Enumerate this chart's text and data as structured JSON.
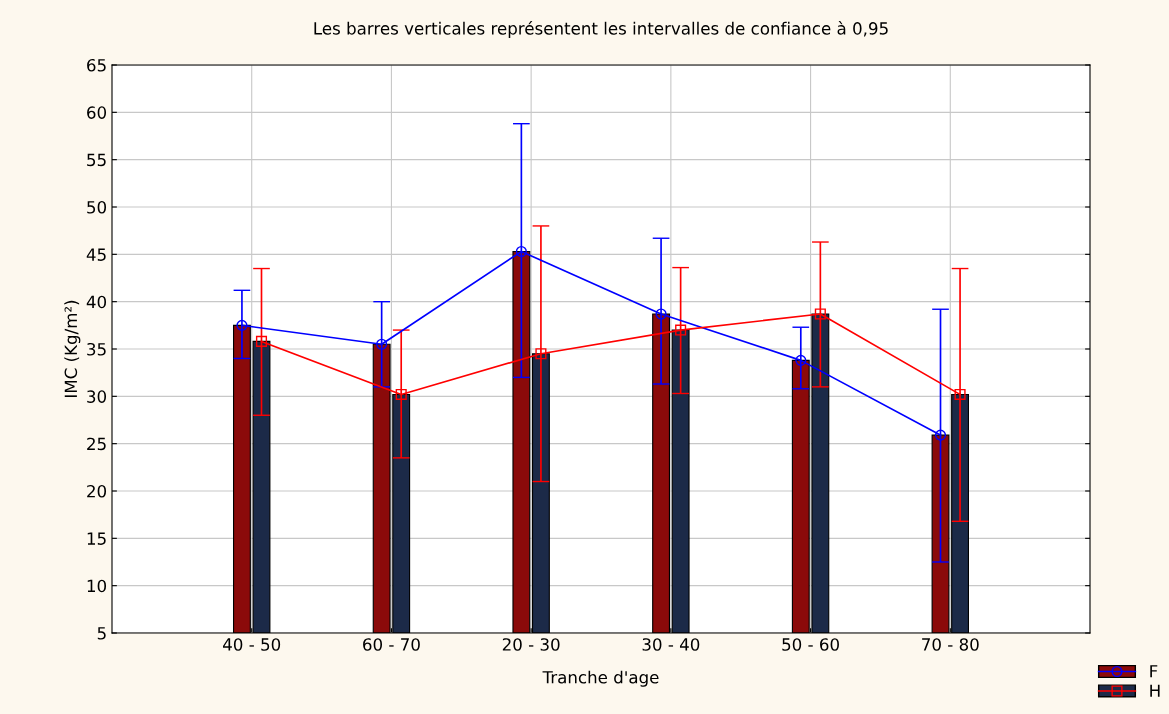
{
  "chart_data": {
    "type": "bar",
    "title": "Les barres verticales représentent les intervalles de confiance à 0,95",
    "xlabel": "Tranche d'age",
    "ylabel": "IMC (Kg/m²)",
    "categories": [
      "40 - 50",
      "60 - 70",
      "20 - 30",
      "30 - 40",
      "50 - 60",
      "70 - 80"
    ],
    "series": [
      {
        "name": "F",
        "color": "#8b0a0a",
        "values": [
          37.5,
          35.5,
          45.3,
          38.7,
          33.8,
          25.9
        ]
      },
      {
        "name": "H",
        "color": "#1c2a48",
        "values": [
          35.8,
          30.2,
          34.5,
          37.0,
          38.7,
          30.2
        ]
      },
      {
        "type": "line",
        "color": "#0000ff",
        "marker": "circle",
        "values": [
          37.5,
          35.5,
          45.3,
          38.7,
          33.8,
          25.9
        ],
        "errors": [
          [
            34.0,
            41.2
          ],
          [
            31.0,
            40.0
          ],
          [
            32.0,
            58.8
          ],
          [
            31.3,
            46.7
          ],
          [
            30.8,
            37.3
          ],
          [
            12.5,
            39.2
          ]
        ]
      },
      {
        "type": "line",
        "color": "#ff0000",
        "marker": "square",
        "values": [
          35.8,
          30.2,
          34.5,
          37.0,
          38.7,
          30.2
        ],
        "errors": [
          [
            28.0,
            43.5
          ],
          [
            23.5,
            37.0
          ],
          [
            21.0,
            48.0
          ],
          [
            30.3,
            43.6
          ],
          [
            31.0,
            46.3
          ],
          [
            16.8,
            43.5
          ]
        ]
      }
    ],
    "ylim": [
      5,
      65
    ],
    "yticks": [
      5,
      10,
      15,
      20,
      25,
      30,
      35,
      40,
      45,
      50,
      55,
      60,
      65
    ],
    "grid": true,
    "legend": "bottom right"
  }
}
